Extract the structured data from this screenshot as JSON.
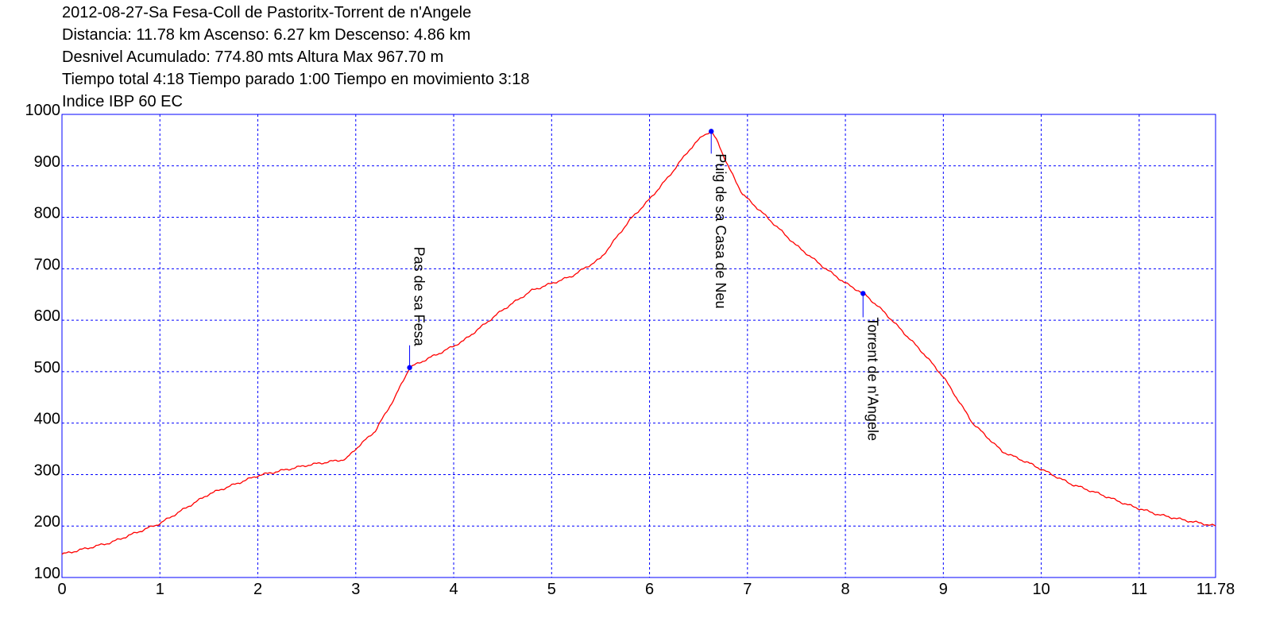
{
  "header": {
    "line1": "2012-08-27-Sa Fesa-Coll de Pastoritx-Torrent de n'Angele",
    "line2": "Distancia: 11.78 km Ascenso: 6.27 km Descenso: 4.86 km",
    "line3": "Desnivel Acumulado: 774.80 mts  Altura Max 967.70 m",
    "line4": "Tiempo total 4:18 Tiempo parado 1:00 Tiempo en movimiento 3:18",
    "line5": "Indice IBP 60 EC"
  },
  "colors": {
    "line": "#ff0000",
    "frame": "#0000ff",
    "grid": "#0000ff",
    "marker": "#0000ff",
    "text": "#000000"
  },
  "chart_data": {
    "type": "line",
    "xlim": [
      0,
      11.78
    ],
    "ylim": [
      100,
      1000
    ],
    "x_ticks": [
      "0",
      "1",
      "2",
      "3",
      "4",
      "5",
      "6",
      "7",
      "8",
      "9",
      "10",
      "11",
      "11.78"
    ],
    "x_tick_values": [
      0,
      1,
      2,
      3,
      4,
      5,
      6,
      7,
      8,
      9,
      10,
      11,
      11.78
    ],
    "y_ticks": [
      "100",
      "200",
      "300",
      "400",
      "500",
      "600",
      "700",
      "800",
      "900",
      "1000"
    ],
    "y_tick_values": [
      100,
      200,
      300,
      400,
      500,
      600,
      700,
      800,
      900,
      1000
    ],
    "grid": true,
    "series": [
      {
        "x": [
          0,
          0.5,
          1.0,
          1.5,
          2.0,
          2.5,
          2.9,
          3.0,
          3.2,
          3.4,
          3.55,
          3.7,
          3.9,
          4.1,
          4.5,
          4.8,
          5.2,
          5.5,
          5.8,
          6.0,
          6.2,
          6.4,
          6.55,
          6.63,
          6.7,
          6.8,
          6.95,
          7.2,
          7.5,
          7.8,
          8.0,
          8.2,
          8.4,
          8.6,
          8.8,
          9.0,
          9.3,
          9.6,
          9.9,
          10.3,
          10.6,
          10.9,
          11.2,
          11.5,
          11.78
        ],
        "y": [
          145,
          168,
          205,
          262,
          298,
          318,
          330,
          350,
          385,
          450,
          508,
          522,
          540,
          560,
          620,
          658,
          685,
          720,
          795,
          835,
          880,
          930,
          960,
          967,
          945,
          900,
          845,
          800,
          745,
          700,
          672,
          650,
          615,
          575,
          535,
          490,
          400,
          345,
          320,
          282,
          262,
          240,
          222,
          210,
          200
        ]
      }
    ],
    "annotations": [
      {
        "label": "Pas de sa Fesa",
        "x": 3.55,
        "y": 508
      },
      {
        "label": "Puig de sa Casa de Neu",
        "x": 6.63,
        "y": 967
      },
      {
        "label": "Torrent de n'Angele",
        "x": 8.18,
        "y": 652
      }
    ]
  }
}
